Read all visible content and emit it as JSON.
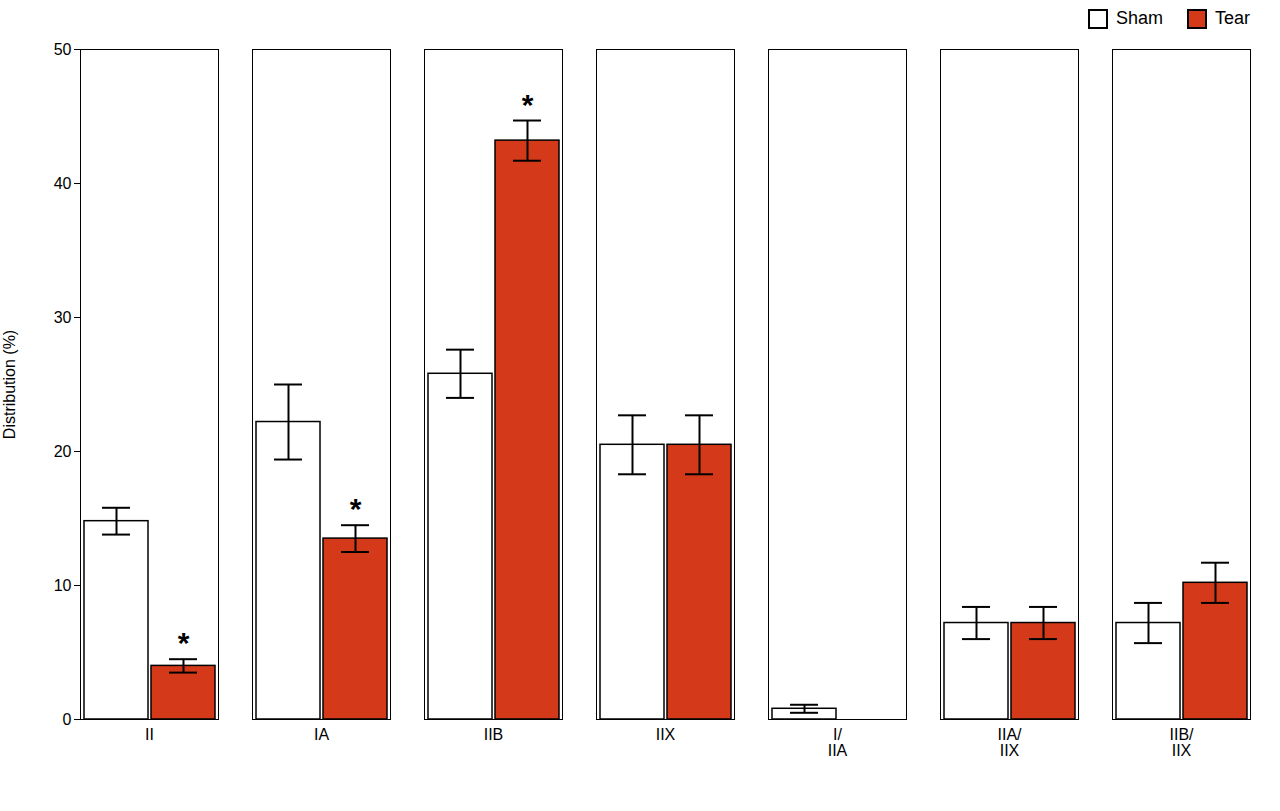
{
  "chart_data": {
    "type": "bar",
    "categories": [
      "II",
      "IA",
      "IIB",
      "IIX",
      "I/\nIIA",
      "IIA/\nIIX",
      "IIB/\nIIX"
    ],
    "series": [
      {
        "name": "Sham",
        "color": "#ffffff",
        "values": [
          14.8,
          22.2,
          25.8,
          20.5,
          0.8,
          7.2,
          7.2
        ],
        "errors": [
          1.0,
          2.8,
          1.8,
          2.2,
          0.3,
          1.2,
          1.5
        ]
      },
      {
        "name": "Tear",
        "color": "#d43a1a",
        "values": [
          4.0,
          13.5,
          43.2,
          20.5,
          null,
          7.2,
          10.2
        ],
        "errors": [
          0.5,
          1.0,
          1.5,
          2.2,
          null,
          1.2,
          1.5
        ]
      }
    ],
    "ylabel": "Distribution (%)",
    "ylim": [
      0,
      50
    ],
    "yticks": [
      0,
      10,
      20,
      30,
      40,
      50
    ],
    "annotations": [
      {
        "category": "II",
        "series": "Tear",
        "text": "*"
      },
      {
        "category": "IA",
        "series": "Tear",
        "text": "*"
      },
      {
        "category": "IIB",
        "series": "Tear",
        "text": "*"
      }
    ],
    "legend": "upper right",
    "grid": false
  }
}
